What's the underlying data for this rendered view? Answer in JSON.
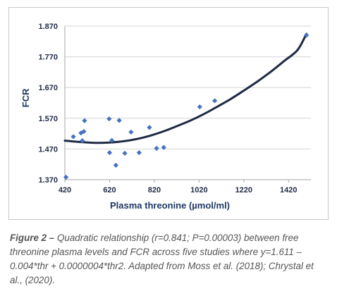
{
  "chart_data": {
    "type": "scatter",
    "xlabel": "Plasma  threonine (µmol/ml)",
    "ylabel": "FCR",
    "xlim": [
      420,
      1520
    ],
    "ylim": [
      1.37,
      1.87
    ],
    "x_ticks": [
      420,
      620,
      820,
      1020,
      1220,
      1420
    ],
    "x_tick_labels": [
      "420",
      "620",
      "820",
      "1020",
      "1220",
      "1420"
    ],
    "y_ticks": [
      1.37,
      1.47,
      1.57,
      1.67,
      1.77,
      1.87
    ],
    "y_tick_labels": [
      "1.370",
      "1.470",
      "1.570",
      "1.670",
      "1.770",
      "1.870"
    ],
    "grid": "horizontal",
    "marker_color": "#4472c4",
    "line_color": "#1f2a44",
    "points": [
      {
        "x": 425,
        "y": 1.378
      },
      {
        "x": 458,
        "y": 1.51
      },
      {
        "x": 492,
        "y": 1.522
      },
      {
        "x": 498,
        "y": 1.497
      },
      {
        "x": 505,
        "y": 1.527
      },
      {
        "x": 508,
        "y": 1.562
      },
      {
        "x": 618,
        "y": 1.568
      },
      {
        "x": 620,
        "y": 1.458
      },
      {
        "x": 630,
        "y": 1.498
      },
      {
        "x": 648,
        "y": 1.417
      },
      {
        "x": 663,
        "y": 1.563
      },
      {
        "x": 688,
        "y": 1.456
      },
      {
        "x": 716,
        "y": 1.525
      },
      {
        "x": 752,
        "y": 1.458
      },
      {
        "x": 798,
        "y": 1.54
      },
      {
        "x": 830,
        "y": 1.472
      },
      {
        "x": 862,
        "y": 1.475
      },
      {
        "x": 1023,
        "y": 1.607
      },
      {
        "x": 1090,
        "y": 1.627
      },
      {
        "x": 1500,
        "y": 1.84
      }
    ],
    "fit": {
      "type": "quadratic",
      "x_range": [
        420,
        1500
      ],
      "curve": [
        {
          "x": 420,
          "y": 1.497
        },
        {
          "x": 500,
          "y": 1.492
        },
        {
          "x": 560,
          "y": 1.49
        },
        {
          "x": 620,
          "y": 1.491
        },
        {
          "x": 680,
          "y": 1.495
        },
        {
          "x": 740,
          "y": 1.502
        },
        {
          "x": 800,
          "y": 1.513
        },
        {
          "x": 860,
          "y": 1.527
        },
        {
          "x": 920,
          "y": 1.544
        },
        {
          "x": 980,
          "y": 1.562
        },
        {
          "x": 1040,
          "y": 1.583
        },
        {
          "x": 1100,
          "y": 1.607
        },
        {
          "x": 1160,
          "y": 1.632
        },
        {
          "x": 1220,
          "y": 1.66
        },
        {
          "x": 1280,
          "y": 1.689
        },
        {
          "x": 1340,
          "y": 1.721
        },
        {
          "x": 1400,
          "y": 1.756
        },
        {
          "x": 1460,
          "y": 1.792
        },
        {
          "x": 1500,
          "y": 1.845
        }
      ]
    }
  },
  "caption": {
    "label": "Figure 2 –",
    "text": " Quadratic relationship (r=0.841; P=0.00003) between free threonine plasma levels and FCR across five studies where y=1.611 – 0.004*thr + 0.0000004*thr2. Adapted from Moss et al. (2018); Chrystal et al., (2020)."
  }
}
